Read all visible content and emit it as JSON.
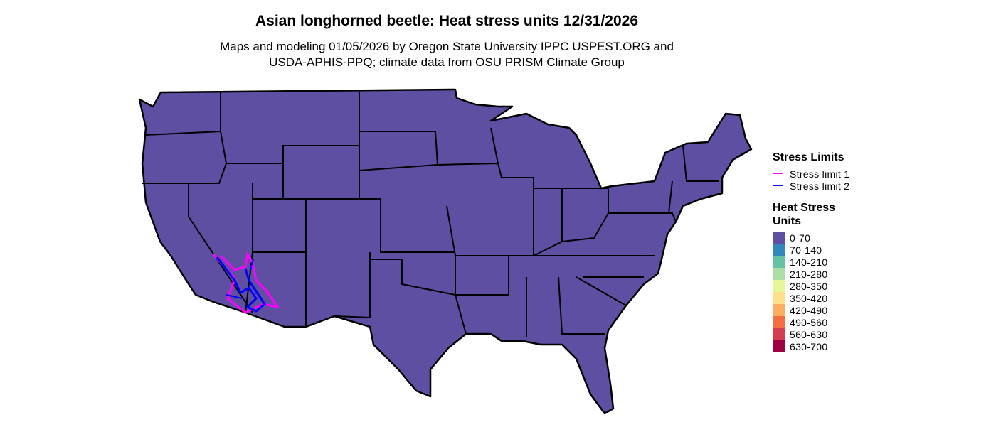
{
  "header": {
    "title": "Asian longhorned beetle: Heat stress units 12/31/2026",
    "subtitle_lines": [
      "Maps and modeling 01/05/2026 by Oregon State University IPPC USPEST.ORG and",
      "USDA-APHIS-PPQ; climate data from OSU PRISM Climate Group"
    ]
  },
  "legend": {
    "stress_limits": {
      "title": "Stress Limits",
      "items": [
        {
          "label": "Stress limit 1",
          "color": "#ff00ff"
        },
        {
          "label": "Stress limit 2",
          "color": "#0000ff"
        }
      ]
    },
    "heat_stress_units": {
      "title": "Heat Stress Units",
      "items": [
        {
          "label": "0-70",
          "color": "#5e4fa2"
        },
        {
          "label": "70-140",
          "color": "#3288bd"
        },
        {
          "label": "140-210",
          "color": "#66c2a5"
        },
        {
          "label": "210-280",
          "color": "#abdda4"
        },
        {
          "label": "280-350",
          "color": "#e6f598"
        },
        {
          "label": "350-420",
          "color": "#fee08b"
        },
        {
          "label": "420-490",
          "color": "#fdae61"
        },
        {
          "label": "490-560",
          "color": "#f46d43"
        },
        {
          "label": "560-630",
          "color": "#d53e4f"
        },
        {
          "label": "630-700",
          "color": "#9e0142"
        }
      ]
    }
  }
}
